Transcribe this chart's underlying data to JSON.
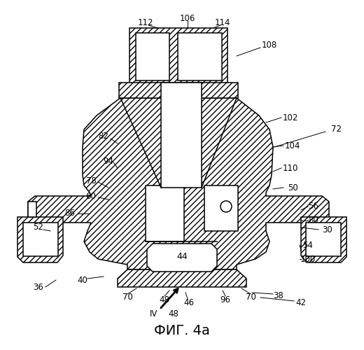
{
  "title": "ФИГ. 4a",
  "bg_color": "#ffffff",
  "line_color": "#000000",
  "figsize": [
    5.2,
    5.0
  ],
  "dpi": 100,
  "hatch": "////",
  "lw": 1.1
}
